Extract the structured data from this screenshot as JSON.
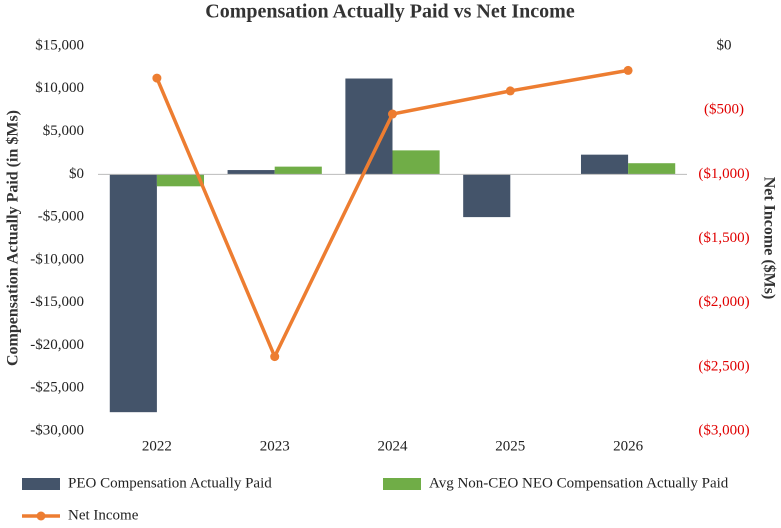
{
  "chart_data": {
    "type": "bar_line",
    "title": "Compensation Actually Paid vs Net Income",
    "ylabel": "Compensation Actually Paid  (in $Ms)",
    "y2label": "Net Income ($Ms)",
    "categories": [
      "2022",
      "2023",
      "2024",
      "2025",
      "2026"
    ],
    "series": [
      {
        "name": "PEO Compensation Actually Paid",
        "color": "#44546a",
        "kind": "bar",
        "values": [
          -27800,
          500,
          11200,
          -5000,
          2300
        ]
      },
      {
        "name": "Avg Non-CEO NEO Compensation Actually Paid",
        "color": "#70ad47",
        "kind": "bar",
        "values": [
          -1400,
          900,
          2800,
          0,
          1300
        ]
      },
      {
        "name": "Net Income",
        "color": "#ed7d31",
        "kind": "line",
        "axis": "y2",
        "values": [
          -250,
          -2420,
          -530,
          -350,
          -190
        ]
      }
    ],
    "ylim": [
      -30000,
      15000
    ],
    "yticks": [
      {
        "value": -30000,
        "label": "-$30,000"
      },
      {
        "value": -25000,
        "label": "-$25,000"
      },
      {
        "value": -20000,
        "label": "-$20,000"
      },
      {
        "value": -15000,
        "label": "-$15,000"
      },
      {
        "value": -10000,
        "label": "-$10,000"
      },
      {
        "value": -5000,
        "label": "-$5,000"
      },
      {
        "value": 0,
        "label": "$0"
      },
      {
        "value": 5000,
        "label": "$5,000"
      },
      {
        "value": 10000,
        "label": "$10,000"
      },
      {
        "value": 15000,
        "label": "$15,000"
      }
    ],
    "y2lim": [
      -3000,
      0
    ],
    "y2ticks": [
      {
        "value": -3000,
        "label": "($3,000)"
      },
      {
        "value": -2500,
        "label": "($2,500)"
      },
      {
        "value": -2000,
        "label": "($2,000)"
      },
      {
        "value": -1500,
        "label": "($1,500)"
      },
      {
        "value": -1000,
        "label": "($1,000)"
      },
      {
        "value": -500,
        "label": "($500)"
      },
      {
        "value": 0,
        "label": "$0"
      }
    ],
    "y2_negative_tick_color": "#e00000",
    "grid": false,
    "legend": "bottom"
  }
}
